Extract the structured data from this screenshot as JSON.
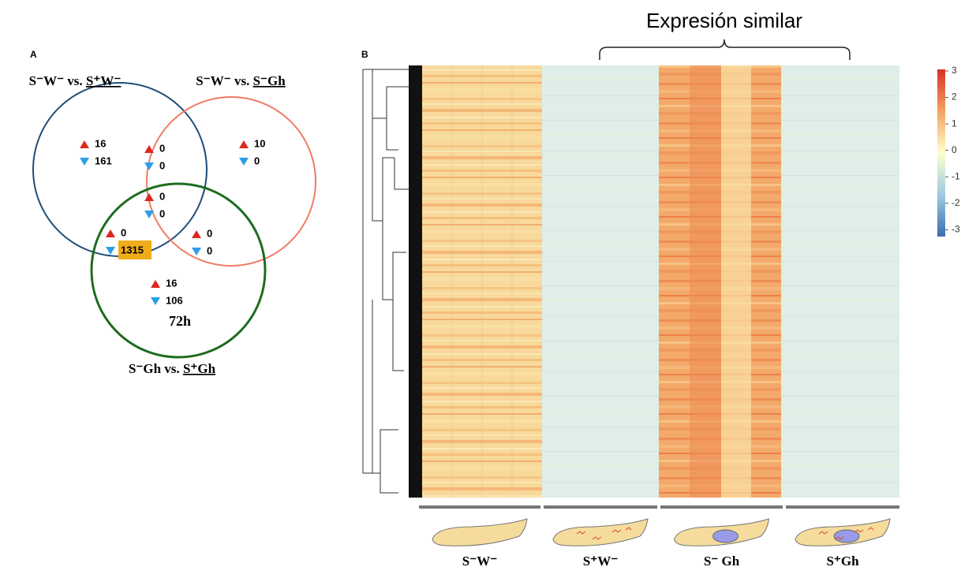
{
  "annotation": "Expresión similar",
  "panel_a": {
    "label": "A",
    "sets": [
      {
        "prefix": "S⁻W⁻ vs. ",
        "underlined": "S⁺W⁻"
      },
      {
        "prefix": "S⁻W⁻ vs. ",
        "underlined": "S⁻Gh"
      },
      {
        "prefix": "S⁻Gh vs. ",
        "underlined": "S⁺Gh"
      }
    ],
    "regions": [
      {
        "up": "16",
        "down": "161"
      },
      {
        "up": "0",
        "down": "0"
      },
      {
        "up": "10",
        "down": "0"
      },
      {
        "up": "0",
        "down": "0"
      },
      {
        "up": "0",
        "down": "1315"
      },
      {
        "up": "0",
        "down": "0"
      },
      {
        "up": "16",
        "down": "106"
      }
    ],
    "time": "72h"
  },
  "panel_b": {
    "label": "B",
    "colorbar_ticks": [
      3,
      2,
      1,
      0,
      -1,
      -2,
      -3
    ],
    "groups": [
      "S⁻W⁻",
      "S⁺W⁻",
      "S⁻ Gh",
      "S⁺Gh"
    ]
  }
}
